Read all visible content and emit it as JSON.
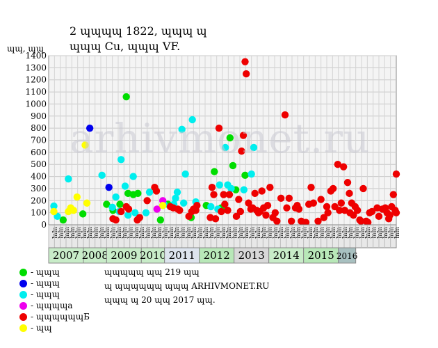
{
  "header": {
    "title_line1": "2 ɰɰɰɰ 1822, ɰɰɰ ɰ",
    "title_line2": "ɰɰɰ Cu, ɰɰɰ VF."
  },
  "watermark": "arhivmonet.ru",
  "notes": {
    "line1": "ɰɰɰɰɰ ɰɰ 219 ɰɰ",
    "line2": "ɰ ɰɰɰɰɰɰ ɰɰɰ ARHIVMONET.RU",
    "line3": "ɰɰɰ ɰ 20 ɰɰ 2017 ɰɰ."
  },
  "legend": [
    {
      "label": "- ɰɰɰ",
      "color": "#00dd00"
    },
    {
      "label": "- ɰɰɰ",
      "color": "#0000ee"
    },
    {
      "label": "- ɰɰɰ",
      "color": "#00eeee"
    },
    {
      "label": "- ɰɰɰɰa",
      "color": "#ee00ee"
    },
    {
      "label": "- ɰɰɰɰɰɰБ",
      "color": "#ee0000"
    },
    {
      "label": "- ɰɰ",
      "color": "#ffff00"
    }
  ],
  "chart_data": {
    "type": "scatter",
    "ylabel": "ɰɰ, ɰɰ",
    "ylim": [
      0,
      1400
    ],
    "yticks": [
      0,
      100,
      200,
      300,
      400,
      500,
      600,
      700,
      800,
      900,
      1000,
      1100,
      1200,
      1300,
      1400
    ],
    "grid": true,
    "xlim": [
      0,
      60
    ],
    "years": [
      {
        "label": "2007",
        "start": 0,
        "end": 6,
        "color": "#c8ecc8"
      },
      {
        "label": "2008",
        "start": 6,
        "end": 10,
        "color": "#c8ecc8"
      },
      {
        "label": "2009",
        "start": 10,
        "end": 16,
        "color": "#c8ecc8"
      },
      {
        "label": "2010",
        "start": 16,
        "end": 20,
        "color": "#c8ecc8"
      },
      {
        "label": "2011",
        "start": 20,
        "end": 26,
        "color": "#dde4ee"
      },
      {
        "label": "2012",
        "start": 26,
        "end": 32,
        "color": "#b8e8b8"
      },
      {
        "label": "2013",
        "start": 32,
        "end": 38,
        "color": "#d8d8d8"
      },
      {
        "label": "2014",
        "start": 38,
        "end": 44,
        "color": "#c8ecc8"
      },
      {
        "label": "2015",
        "start": 44,
        "end": 50,
        "color": "#b8e8b8"
      },
      {
        "label": "2016",
        "start": 50,
        "end": 53,
        "color": "#a8c0c0"
      }
    ],
    "quarter_labels": [
      "ɰɰ",
      "ɰɰ",
      "ɰɰ",
      "ɰɰ",
      "ɰɰ",
      "ɰɰ",
      "ɰɰ",
      "ɰɰ",
      "ɰɰ",
      "ɰɰ",
      "ɰɰ",
      "ɰɰ",
      "ɰɰ",
      "ɰɰ",
      "ɰɰ",
      "ɰɰ",
      "ɰɰ",
      "ɰɰ",
      "ɰɰ",
      "ɰɰ",
      "ɰɰ",
      "ɰɰ",
      "ɰɰ",
      "ɰɰ",
      "ɰɰ",
      "ɰɰ",
      "ɰɰ",
      "ɰɰ",
      "ɰɰ",
      "ɰɰ",
      "ɰɰ",
      "ɰɰ",
      "ɰɰ",
      "ɰɰ",
      "ɰɰ",
      "ɰɰ",
      "ɰɰ",
      "ɰɰ",
      "ɰɰ",
      "ɰɰ",
      "ɰɰ",
      "ɰɰ",
      "ɰɰ",
      "ɰɰ",
      "ɰɰ",
      "ɰɰ",
      "ɰɰ",
      "ɰɰ",
      "ɰɰ",
      "ɰɰ",
      "ɰɰ",
      "ɰɰ",
      "ɰɰ",
      "ɰɰ",
      "ɰɰ",
      "ɰɰ",
      "ɰɰ",
      "ɰɰ",
      "ɰɰ",
      "ɰɰ"
    ],
    "series": [
      {
        "color": "#00dd00",
        "points": [
          [
            2.5,
            40
          ],
          [
            5.9,
            90
          ],
          [
            10,
            170
          ],
          [
            11.1,
            120
          ],
          [
            12.3,
            170
          ],
          [
            13.4,
            1060
          ],
          [
            13.7,
            260
          ],
          [
            14.6,
            250
          ],
          [
            15.4,
            260
          ],
          [
            19.3,
            40
          ],
          [
            19.7,
            160
          ],
          [
            20.6,
            170
          ],
          [
            24.6,
            60
          ],
          [
            27.2,
            160
          ],
          [
            28.6,
            440
          ],
          [
            29.8,
            140
          ],
          [
            31.3,
            720
          ],
          [
            31.8,
            490
          ],
          [
            32.3,
            290
          ],
          [
            33.9,
            410
          ]
        ]
      },
      {
        "color": "#0000ee",
        "points": [
          [
            7.1,
            800
          ],
          [
            10.4,
            310
          ]
        ]
      },
      {
        "color": "#00eeee",
        "points": [
          [
            0.9,
            155
          ],
          [
            1.5,
            70
          ],
          [
            3.4,
            380
          ],
          [
            9.2,
            410
          ],
          [
            11.0,
            145
          ],
          [
            11.6,
            230
          ],
          [
            12.2,
            110
          ],
          [
            12.5,
            540
          ],
          [
            13.2,
            320
          ],
          [
            13.7,
            80
          ],
          [
            14.6,
            400
          ],
          [
            14.9,
            100
          ],
          [
            16.8,
            100
          ],
          [
            17.4,
            270
          ],
          [
            19.9,
            170
          ],
          [
            21.6,
            170
          ],
          [
            21.9,
            220
          ],
          [
            22.2,
            270
          ],
          [
            23.0,
            790
          ],
          [
            23.3,
            180
          ],
          [
            23.6,
            420
          ],
          [
            24.8,
            870
          ],
          [
            25.4,
            190
          ],
          [
            28.0,
            150
          ],
          [
            29.2,
            130
          ],
          [
            29.5,
            330
          ],
          [
            30.5,
            640
          ],
          [
            30.9,
            330
          ],
          [
            31.5,
            300
          ],
          [
            33.7,
            290
          ],
          [
            35.0,
            420
          ],
          [
            35.4,
            640
          ]
        ]
      },
      {
        "color": "#ee00ee",
        "points": [
          [
            18.7,
            130
          ],
          [
            19.7,
            200
          ]
        ]
      },
      {
        "color": "#ee0000",
        "points": [
          [
            11.1,
            50
          ],
          [
            11.6,
            40
          ],
          [
            12.5,
            110
          ],
          [
            13.4,
            150
          ],
          [
            13.8,
            130
          ],
          [
            15.3,
            40
          ],
          [
            15.7,
            60
          ],
          [
            17.0,
            200
          ],
          [
            18.3,
            310
          ],
          [
            18.6,
            280
          ],
          [
            21.0,
            150
          ],
          [
            21.5,
            140
          ],
          [
            22.3,
            130
          ],
          [
            22.6,
            120
          ],
          [
            24.2,
            70
          ],
          [
            24.7,
            110
          ],
          [
            25.0,
            130
          ],
          [
            25.4,
            120
          ],
          [
            25.6,
            160
          ],
          [
            27.9,
            60
          ],
          [
            28.2,
            310
          ],
          [
            28.5,
            250
          ],
          [
            28.8,
            50
          ],
          [
            29.4,
            800
          ],
          [
            29.8,
            110
          ],
          [
            30.2,
            250
          ],
          [
            30.4,
            170
          ],
          [
            30.9,
            120
          ],
          [
            31.2,
            250
          ],
          [
            32.4,
            70
          ],
          [
            32.8,
            210
          ],
          [
            33.1,
            110
          ],
          [
            33.3,
            610
          ],
          [
            33.6,
            740
          ],
          [
            33.9,
            1350
          ],
          [
            34.1,
            1250
          ],
          [
            34.5,
            180
          ],
          [
            34.9,
            130
          ],
          [
            35.2,
            140
          ],
          [
            35.6,
            260
          ],
          [
            35.9,
            120
          ],
          [
            36.2,
            100
          ],
          [
            36.5,
            110
          ],
          [
            36.8,
            280
          ],
          [
            37.1,
            140
          ],
          [
            37.5,
            80
          ],
          [
            37.8,
            160
          ],
          [
            38.2,
            310
          ],
          [
            38.7,
            60
          ],
          [
            39.1,
            100
          ],
          [
            39.4,
            30
          ],
          [
            40.1,
            220
          ],
          [
            40.8,
            910
          ],
          [
            41.1,
            140
          ],
          [
            41.5,
            220
          ],
          [
            41.9,
            30
          ],
          [
            42.6,
            140
          ],
          [
            42.9,
            160
          ],
          [
            43.2,
            130
          ],
          [
            43.6,
            30
          ],
          [
            44.4,
            20
          ],
          [
            44.9,
            170
          ],
          [
            45.3,
            310
          ],
          [
            45.7,
            180
          ],
          [
            46.5,
            30
          ],
          [
            47.0,
            210
          ],
          [
            47.5,
            60
          ],
          [
            48.0,
            150
          ],
          [
            48.2,
            100
          ],
          [
            48.7,
            280
          ],
          [
            49.1,
            300
          ],
          [
            49.4,
            150
          ],
          [
            49.9,
            500
          ],
          [
            50.2,
            120
          ],
          [
            50.5,
            180
          ],
          [
            50.9,
            480
          ],
          [
            51.1,
            120
          ],
          [
            51.6,
            350
          ],
          [
            51.9,
            260
          ],
          [
            52.0,
            100
          ],
          [
            52.3,
            180
          ],
          [
            52.6,
            80
          ],
          [
            52.9,
            150
          ],
          [
            53.3,
            120
          ],
          [
            53.7,
            40
          ],
          [
            53.9,
            30
          ],
          [
            54.3,
            300
          ],
          [
            54.8,
            30
          ],
          [
            55.1,
            20
          ],
          [
            55.4,
            100
          ],
          [
            55.8,
            110
          ],
          [
            56.7,
            140
          ],
          [
            57.0,
            70
          ],
          [
            57.6,
            130
          ],
          [
            58.1,
            140
          ],
          [
            58.4,
            100
          ],
          [
            58.7,
            50
          ],
          [
            58.9,
            80
          ],
          [
            59.2,
            150
          ],
          [
            59.5,
            250
          ],
          [
            59.8,
            120
          ],
          [
            60.5,
            100
          ],
          [
            61.1,
            420
          ]
        ]
      },
      {
        "color": "#ffff00",
        "points": [
          [
            0.9,
            110
          ],
          [
            3.4,
            110
          ],
          [
            3.8,
            140
          ],
          [
            4.3,
            120
          ],
          [
            4.9,
            230
          ],
          [
            6.3,
            660
          ],
          [
            6.6,
            180
          ],
          [
            19.7,
            160
          ]
        ]
      }
    ]
  }
}
